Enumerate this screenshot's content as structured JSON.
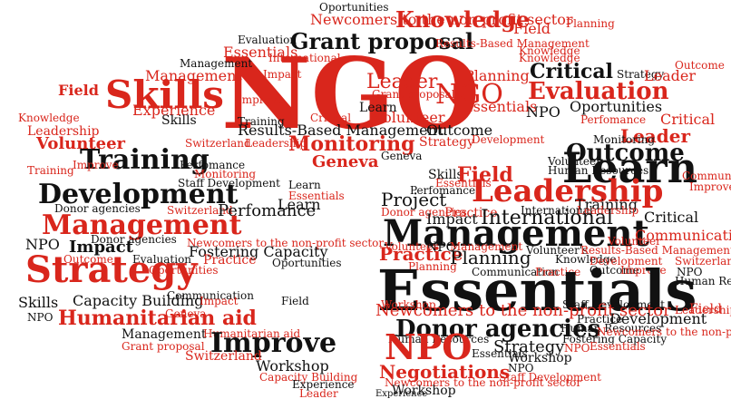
{
  "colors": {
    "red": "#d9261c",
    "black": "#111111",
    "background": "#ffffff"
  },
  "words": {
    "ngo": "NGO",
    "skills": "Skills",
    "strategy": "Strategy",
    "management": "Management",
    "essentials": "Essentials",
    "development": "Development",
    "learn": "Learn",
    "leadership": "Leadership",
    "evaluation": "Evaluation",
    "knowledge": "Knowledge",
    "grant_proposal": "Grant proposal",
    "training": "Training",
    "monitoring": "Monitoring",
    "volunteer": "Volunteer",
    "improve": "Improve",
    "impact": "Impact",
    "humanitarian_aid": "Humanitarian aid",
    "nposmall": "NPO",
    "project": "Project",
    "international": "International",
    "planning": "Planning",
    "practice": "Practice",
    "outcome": "Outcome",
    "leader": "Leader",
    "field": "Field",
    "critical": "Critical",
    "perfomance": "Perfomance",
    "experience": "Experience",
    "geneva": "Geneva",
    "switzerland": "Switzerland",
    "workshop": "Workshop",
    "fostering_capacity": "Fostering Capacity",
    "capacity_building": "Capacity Building",
    "donor_agencies": "Donor agencies",
    "communication": "Communication",
    "negotiations": "Negotiations",
    "newcomers": "Newcomers to the non-profit sector",
    "results_based": "Results-Based Management",
    "staff_development": "Staff Development",
    "human_resources": "Human Resources",
    "oportunities": "Oportunities",
    "essentials_small": "Essentials",
    "volunteers": "Volunteer's"
  }
}
